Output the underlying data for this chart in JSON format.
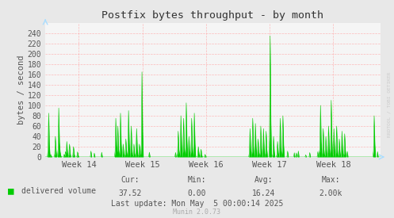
{
  "title": "Postfix bytes throughput - by month",
  "ylabel": "bytes / second",
  "bg_color": "#e8e8e8",
  "plot_bg_color": "#f5f5f5",
  "grid_color": "#ffaaaa",
  "line_color": "#00cc00",
  "fill_color": "#00cc00",
  "tick_label_color": "#555555",
  "title_color": "#333333",
  "ylabel_color": "#555555",
  "x_tick_labels": [
    "Week 14",
    "Week 15",
    "Week 16",
    "Week 17",
    "Week 18"
  ],
  "ylim": [
    0,
    260
  ],
  "yticks": [
    0,
    20,
    40,
    60,
    80,
    100,
    120,
    140,
    160,
    180,
    200,
    220,
    240
  ],
  "legend_label": "delivered volume",
  "legend_color": "#00cc00",
  "cur_val": "37.52",
  "min_val": "0.00",
  "avg_val": "16.24",
  "max_val": "2.00k",
  "last_update": "Last update: Mon May  5 00:00:14 2025",
  "munin_version": "Munin 2.0.73",
  "rrdtool_text": "RRDTOOL / TOBI OETIKER",
  "figsize": [
    4.97,
    2.75
  ],
  "dpi": 100
}
